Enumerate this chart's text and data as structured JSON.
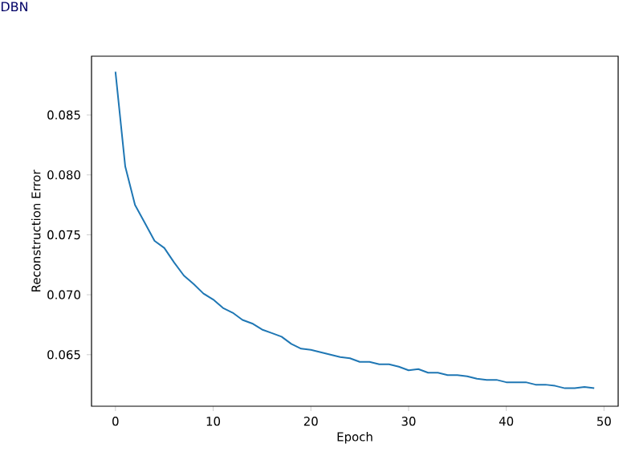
{
  "chart_data": {
    "type": "line",
    "title": "DBN",
    "xlabel": "Epoch",
    "ylabel": "Reconstruction Error",
    "x": [
      0,
      1,
      2,
      3,
      4,
      5,
      6,
      7,
      8,
      9,
      10,
      11,
      12,
      13,
      14,
      15,
      16,
      17,
      18,
      19,
      20,
      21,
      22,
      23,
      24,
      25,
      26,
      27,
      28,
      29,
      30,
      31,
      32,
      33,
      34,
      35,
      36,
      37,
      38,
      39,
      40,
      41,
      42,
      43,
      44,
      45,
      46,
      47,
      48,
      49
    ],
    "series": [
      {
        "color": "#1f77b4",
        "values": [
          0.0886,
          0.0807,
          0.0775,
          0.076,
          0.0745,
          0.0739,
          0.0727,
          0.0716,
          0.0709,
          0.0701,
          0.0696,
          0.0689,
          0.0685,
          0.0679,
          0.0676,
          0.0671,
          0.0668,
          0.0665,
          0.0659,
          0.0655,
          0.0654,
          0.0652,
          0.065,
          0.0648,
          0.0647,
          0.0644,
          0.0644,
          0.0642,
          0.0642,
          0.064,
          0.0637,
          0.0638,
          0.0635,
          0.0635,
          0.0633,
          0.0633,
          0.0632,
          0.063,
          0.0629,
          0.0629,
          0.0627,
          0.0627,
          0.0627,
          0.0625,
          0.0625,
          0.0624,
          0.0622,
          0.0622,
          0.0623,
          0.0622
        ]
      }
    ],
    "xlim": [
      -2.45,
      51.45
    ],
    "ylim": [
      0.0607,
      0.0899
    ],
    "xticks": [
      0,
      10,
      20,
      30,
      40,
      50
    ],
    "yticks": [
      {
        "value": 0.065,
        "label": "0.065"
      },
      {
        "value": 0.07,
        "label": "0.070"
      },
      {
        "value": 0.075,
        "label": "0.075"
      },
      {
        "value": 0.08,
        "label": "0.080"
      },
      {
        "value": 0.085,
        "label": "0.085"
      }
    ],
    "marker": "none",
    "line_style": "solid"
  }
}
